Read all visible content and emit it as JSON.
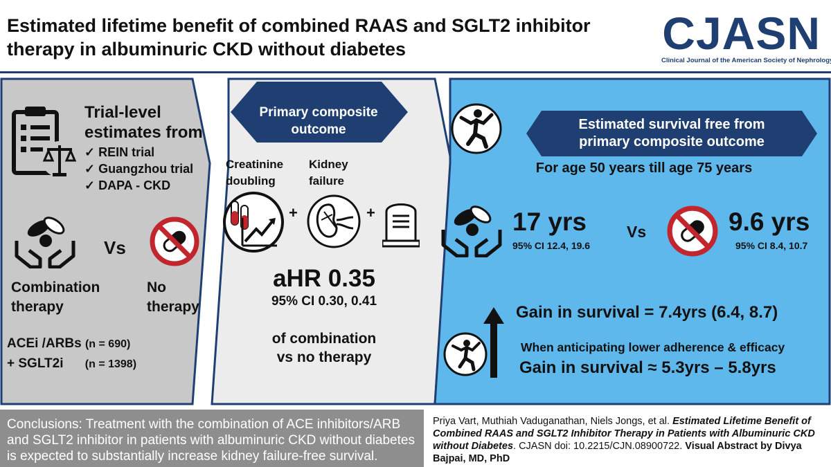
{
  "header": {
    "title_line1": "Estimated lifetime benefit of combined RAAS and SGLT2 inhibitor",
    "title_line2": "therapy in albuminuric CKD without diabetes",
    "logo_text": "CJASN",
    "logo_subtitle": "Clinical Journal of the American Society of Nephrology"
  },
  "left_panel": {
    "heading_line1": "Trial-level",
    "heading_line2": "estimates from",
    "trials": [
      "REIN trial",
      "Guangzhou trial",
      "DAPA - CKD"
    ],
    "check": "✓",
    "vs": "Vs",
    "combo_line1": "Combination",
    "combo_line2": "therapy",
    "no_line1": "No",
    "no_line2": "therapy",
    "drug1": "ACEi /ARBs",
    "drug1_n": "(n = 690)",
    "drug2": "+ SGLT2i",
    "drug2_n": "(n = 1398)"
  },
  "middle_panel": {
    "banner_line1": "Primary composite",
    "banner_line2": "outcome",
    "label1_line1": "Creatinine",
    "label1_line2": "doubling",
    "label2_line1": "Kidney",
    "label2_line2": "failure",
    "plus": "+",
    "ahr": "aHR 0.35",
    "ci": "95% CI 0.30, 0.41",
    "desc_line1": "of combination",
    "desc_line2": "vs no therapy"
  },
  "right_panel": {
    "banner_line1": "Estimated survival free from",
    "banner_line2": "primary composite outcome",
    "age_range": "For age 50 years till age 75 years",
    "combo_years": "17 yrs",
    "combo_ci": "95% CI 12.4, 19.6",
    "vs": "Vs",
    "no_years": "9.6 yrs",
    "no_ci": "95% CI 8.4, 10.7",
    "gain": "Gain in survival = 7.4yrs (6.4, 8.7)",
    "adherence": "When anticipating lower adherence & efficacy",
    "gain_approx": "Gain in survival ≈ 5.3yrs – 5.8yrs"
  },
  "footer": {
    "conclusions": "Conclusions: Treatment with the combination of ACE inhibitors/ARB and SGLT2 inhibitor in patients with albuminuric CKD without diabetes is expected to substantially increase kidney failure-free survival.",
    "authors": "Priya Vart, Muthiah Vaduganathan, Niels Jongs, et al.",
    "article_title": "Estimated Lifetime Benefit of Combined RAAS and SGLT2 Inhibitor Therapy in Patients with Albuminuric CKD without Diabetes",
    "doi": ". CJASN doi: 10.2215/CJN.08900722.",
    "visual_by": "Visual Abstract by Divya Bajpai, MD, PhD"
  },
  "colors": {
    "navy": "#1f3f73",
    "gray_panel": "#c8c8c8",
    "light_panel": "#ececec",
    "blue_panel": "#5fb8ec",
    "footer_gray": "#8e8e8e",
    "red": "#c0262c"
  }
}
